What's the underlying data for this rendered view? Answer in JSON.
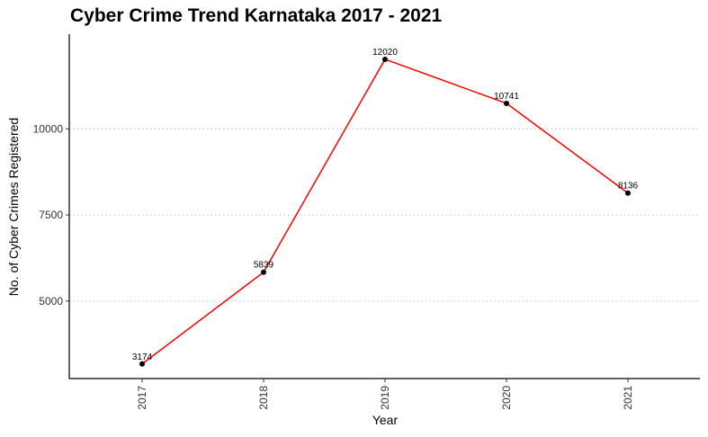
{
  "chart_data": {
    "type": "line",
    "title": "Cyber Crime Trend Karnataka 2017 - 2021",
    "xlabel": "Year",
    "ylabel": "No. of Cyber Crimes Registered",
    "categories": [
      "2017",
      "2018",
      "2019",
      "2020",
      "2021"
    ],
    "series": [
      {
        "values": [
          3174,
          5839,
          12020,
          10741,
          8136
        ]
      }
    ],
    "data_labels": [
      "3174",
      "5839",
      "12020",
      "10741",
      "8136"
    ],
    "yticks": [
      5000,
      7500,
      10000
    ],
    "ytick_labels": [
      "5000",
      "7500",
      "10000"
    ],
    "ylim": [
      2750,
      12750
    ],
    "grid": "horizontal dotted major",
    "legend": "none",
    "line_color": "#ff0000",
    "point_color": "#000000"
  }
}
